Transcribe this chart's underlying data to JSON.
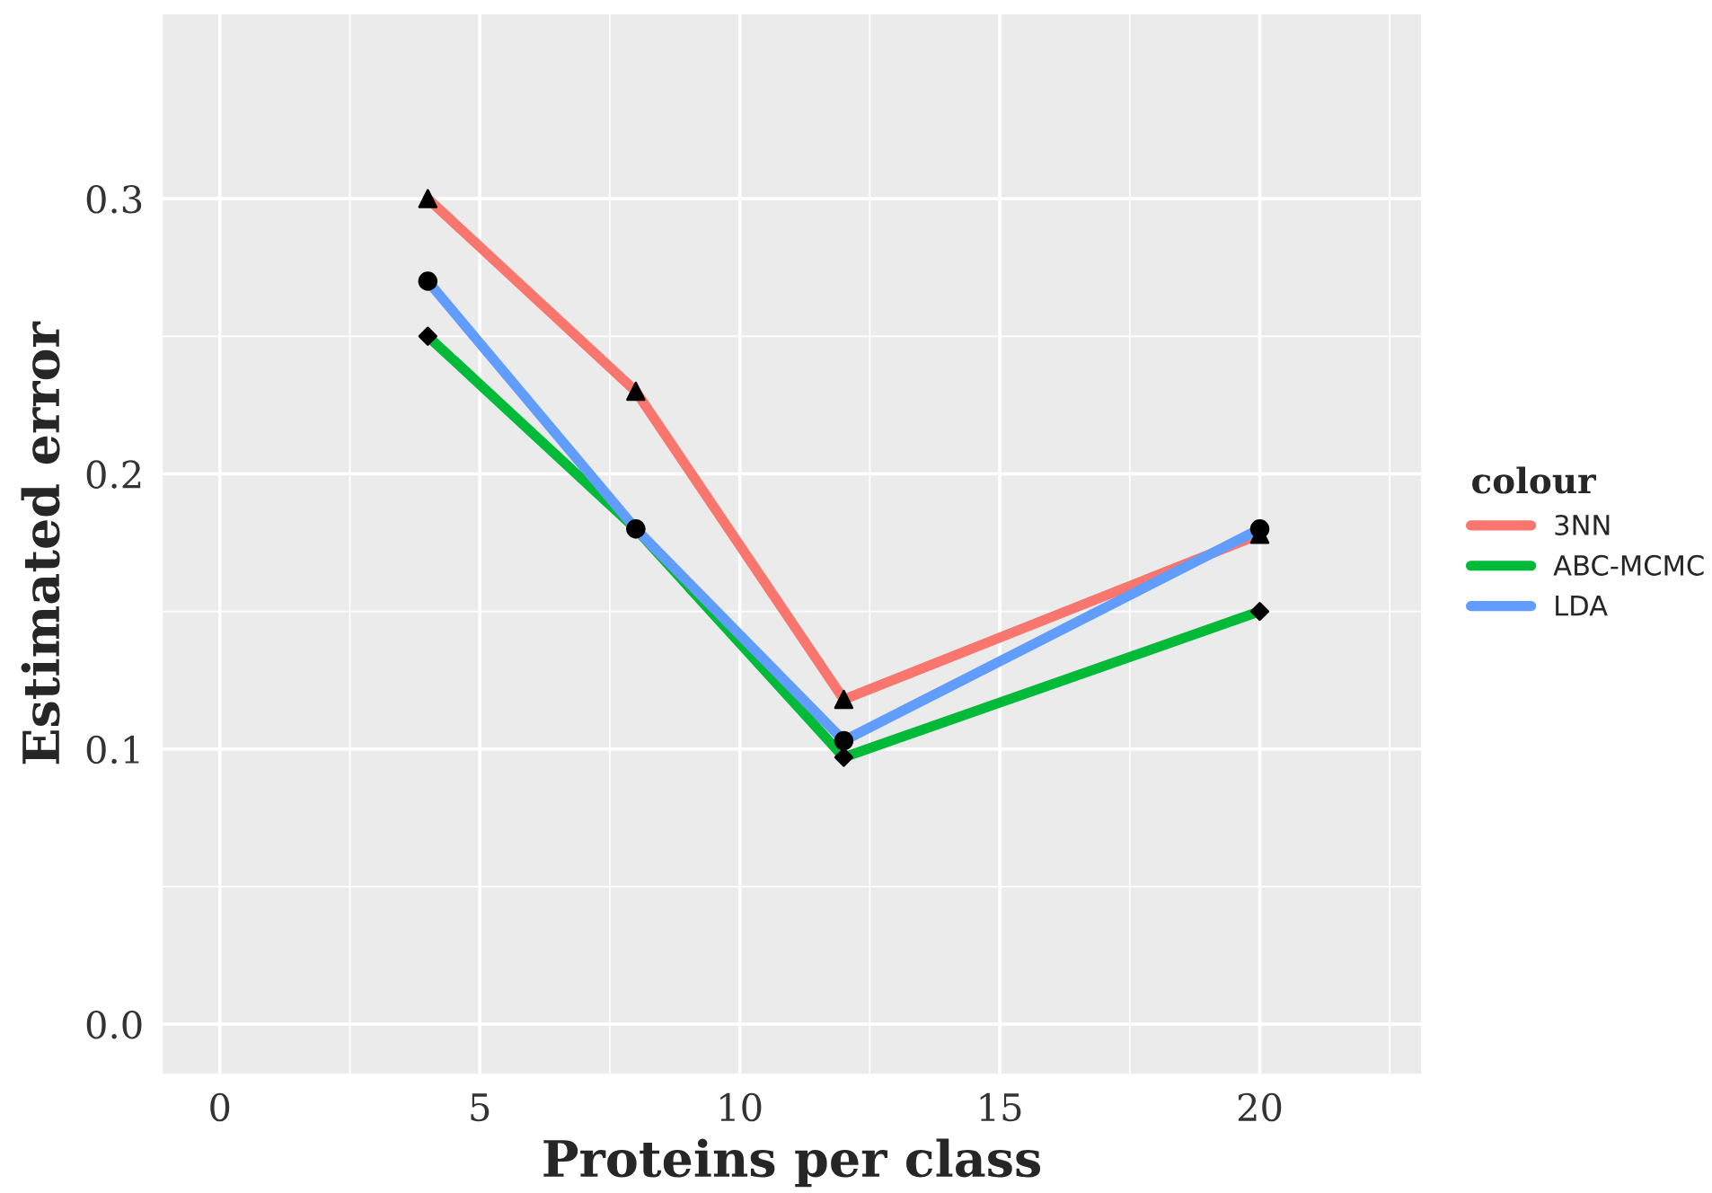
{
  "chart_data": {
    "type": "line",
    "xlabel": "Proteins per class",
    "ylabel": "Estimated error",
    "legend_title": "colour",
    "x": [
      4,
      8,
      12,
      20
    ],
    "series": [
      {
        "name": "3NN",
        "color": "#f8766d",
        "marker": "triangle",
        "values": [
          0.3,
          0.23,
          0.118,
          0.178
        ]
      },
      {
        "name": "ABC-MCMC",
        "color": "#00ba38",
        "marker": "diamond",
        "values": [
          0.25,
          0.18,
          0.097,
          0.15
        ]
      },
      {
        "name": "LDA",
        "color": "#619cff",
        "marker": "circle",
        "values": [
          0.27,
          0.18,
          0.103,
          0.18
        ]
      }
    ],
    "xlim": [
      -1.1,
      23.1
    ],
    "ylim": [
      -0.018,
      0.367
    ],
    "xticks": [
      0,
      5,
      10,
      15,
      20
    ],
    "yticks": [
      {
        "value": 0.0,
        "label": "0.0"
      },
      {
        "value": 0.1,
        "label": "0.1"
      },
      {
        "value": 0.2,
        "label": "0.2"
      },
      {
        "value": 0.3,
        "label": "0.3"
      }
    ],
    "grid": true,
    "legend": "right",
    "line_style": "solid"
  }
}
